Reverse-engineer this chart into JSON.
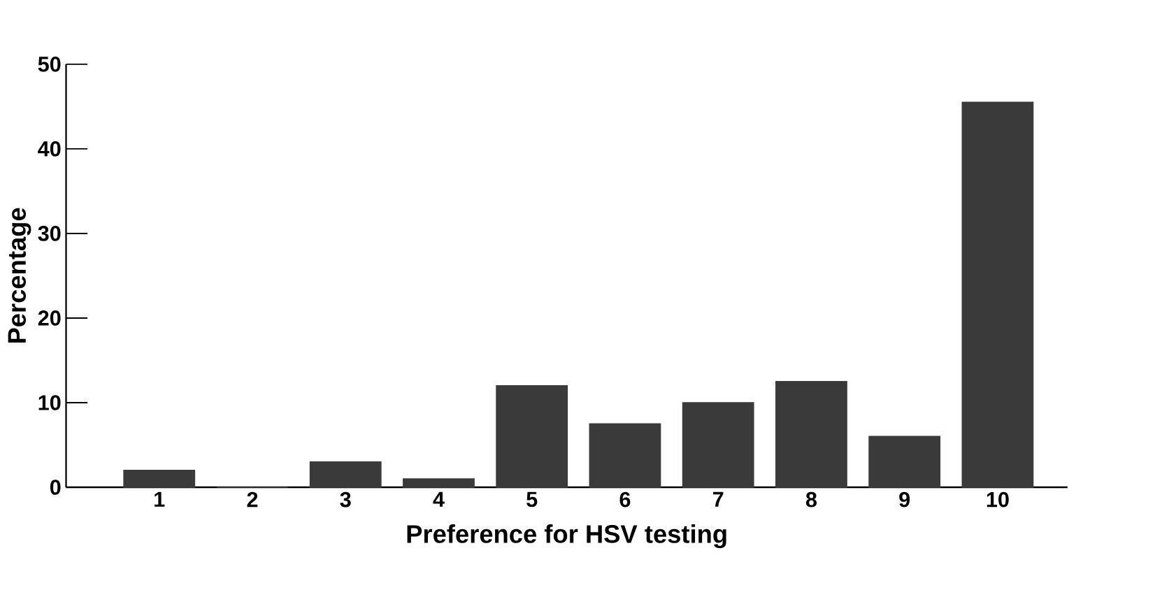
{
  "chart_data": {
    "type": "bar",
    "xlabel": "Preference for HSV testing",
    "ylabel": "Percentage",
    "categories": [
      "1",
      "2",
      "3",
      "4",
      "5",
      "6",
      "7",
      "8",
      "9",
      "10"
    ],
    "values": [
      2,
      0,
      3,
      1,
      12,
      7.5,
      10,
      12.5,
      6,
      45.5
    ],
    "color": "#3a3a3a",
    "ylim": [
      0,
      50
    ],
    "yticks": [
      0,
      10,
      20,
      30,
      40,
      50
    ],
    "grid": false
  }
}
